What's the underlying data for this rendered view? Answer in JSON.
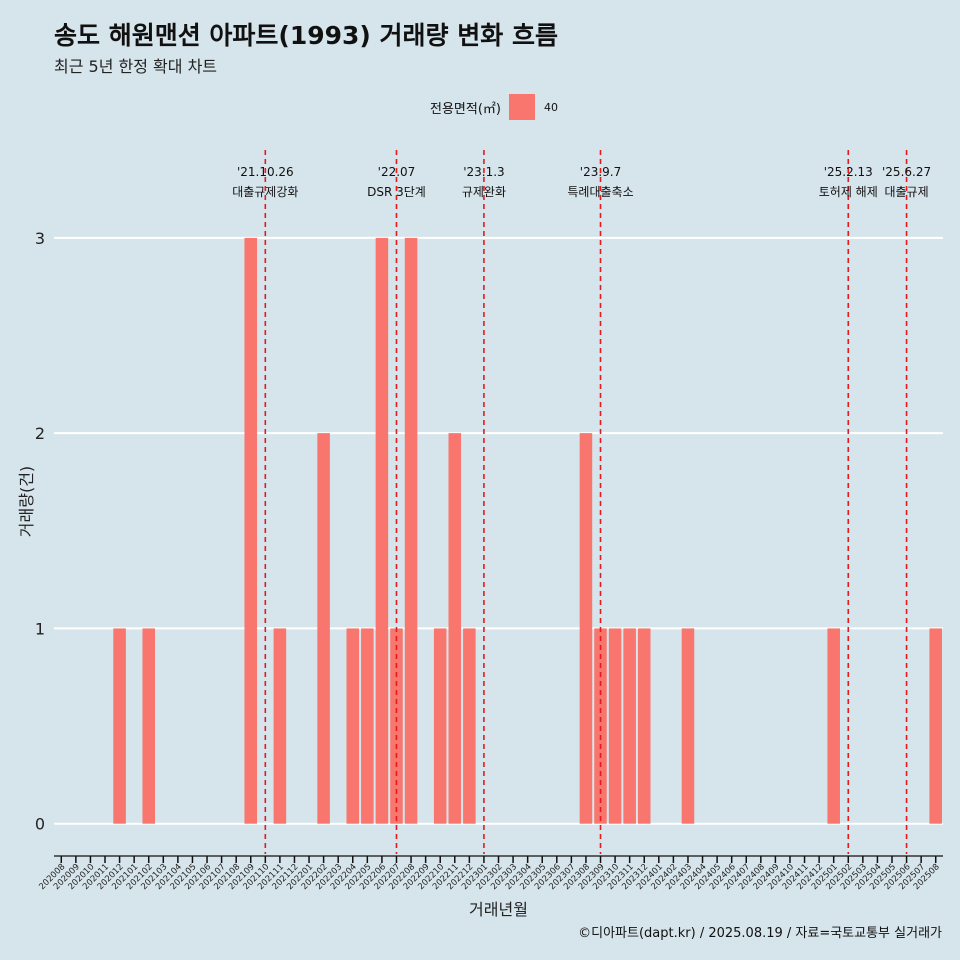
{
  "title": "송도 해원맨션 아파트(1993) 거래량 변화 흐름",
  "subtitle": "최근 5년 한정 확대 차트",
  "legend": {
    "title": "전용면적(㎡)",
    "entry": "40"
  },
  "caption": "©디아파트(dapt.kr) / 2025.08.19 / 자료=국토교통부 실거래가",
  "colors": {
    "bar": "#f8766d",
    "background": "#d6e4eb",
    "grid": "#ffffff",
    "event_line": "#e41a1c"
  },
  "chart_data": {
    "type": "bar",
    "xlabel": "거래년월",
    "ylabel": "거래량(건)",
    "ylim": [
      -0.15,
      3.45
    ],
    "yticks": [
      0,
      1,
      2,
      3
    ],
    "grid": true,
    "legend_position": "top",
    "categories": [
      "202008",
      "202009",
      "202010",
      "202011",
      "202012",
      "202101",
      "202102",
      "202103",
      "202104",
      "202105",
      "202106",
      "202107",
      "202108",
      "202109",
      "202110",
      "202111",
      "202112",
      "202201",
      "202202",
      "202203",
      "202204",
      "202205",
      "202206",
      "202207",
      "202208",
      "202209",
      "202210",
      "202211",
      "202212",
      "202301",
      "202302",
      "202303",
      "202304",
      "202305",
      "202306",
      "202307",
      "202308",
      "202309",
      "202310",
      "202311",
      "202312",
      "202401",
      "202402",
      "202403",
      "202404",
      "202405",
      "202406",
      "202407",
      "202408",
      "202409",
      "202410",
      "202411",
      "202412",
      "202501",
      "202502",
      "202503",
      "202504",
      "202505",
      "202506",
      "202507",
      "202508"
    ],
    "series": [
      {
        "name": "40",
        "values": [
          0,
          0,
          0,
          0,
          1,
          0,
          1,
          0,
          0,
          0,
          0,
          0,
          0,
          3,
          0,
          1,
          0,
          0,
          2,
          0,
          1,
          1,
          3,
          1,
          3,
          0,
          1,
          2,
          1,
          0,
          0,
          0,
          0,
          0,
          0,
          0,
          2,
          1,
          1,
          1,
          1,
          0,
          0,
          1,
          0,
          0,
          0,
          0,
          0,
          0,
          0,
          0,
          0,
          1,
          0,
          0,
          0,
          0,
          0,
          0,
          1
        ]
      }
    ],
    "annotations": [
      {
        "date": "'21.10.26",
        "label": "대출규제강화",
        "category": "202110"
      },
      {
        "date": "'22.07",
        "label": "DSR 3단계",
        "category": "202207"
      },
      {
        "date": "'23.1.3",
        "label": "규제완화",
        "category": "202301"
      },
      {
        "date": "'23.9.7",
        "label": "특례대출축소",
        "category": "202309"
      },
      {
        "date": "'25.2.13",
        "label": "토허제 해제",
        "category": "202502"
      },
      {
        "date": "'25.6.27",
        "label": "대출규제",
        "category": "202506"
      }
    ]
  }
}
